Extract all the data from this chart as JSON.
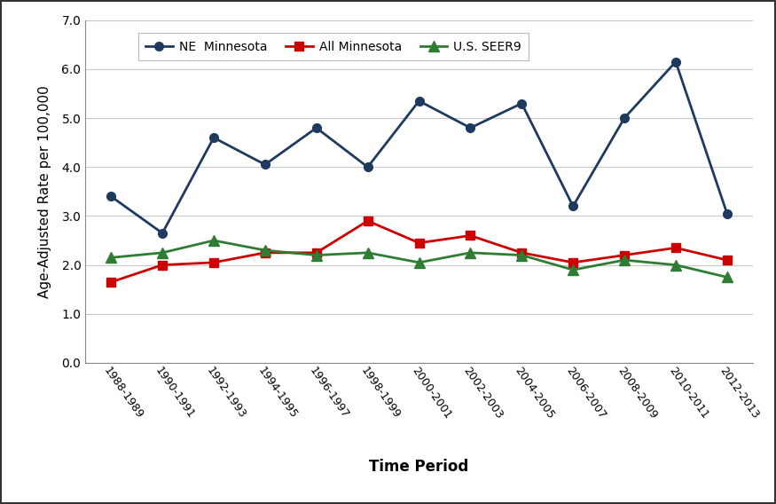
{
  "time_periods": [
    "1988-1989",
    "1990-1991",
    "1992-1993",
    "1994-1995",
    "1996-1997",
    "1998-1999",
    "2000-2001",
    "2002-2003",
    "2004-2005",
    "2006-2007",
    "2008-2009",
    "2010-2011",
    "2012-2013"
  ],
  "ne_minnesota": [
    3.4,
    2.65,
    4.6,
    4.05,
    4.8,
    4.0,
    5.35,
    4.8,
    5.3,
    3.2,
    5.0,
    6.15,
    3.05
  ],
  "all_minnesota": [
    1.65,
    2.0,
    2.05,
    2.25,
    2.25,
    2.9,
    2.45,
    2.6,
    2.25,
    2.05,
    2.2,
    2.35,
    2.1
  ],
  "us_seer9": [
    2.15,
    2.25,
    2.5,
    2.3,
    2.2,
    2.25,
    2.05,
    2.25,
    2.2,
    1.9,
    2.1,
    2.0,
    1.75
  ],
  "ne_color": "#1e3a5f",
  "all_mn_color": "#cc0000",
  "seer9_color": "#2e7d32",
  "xlabel": "Time Period",
  "ylabel": "Age-Adjusted Rate per 100,000",
  "ylim": [
    0.0,
    7.0
  ],
  "yticks": [
    0.0,
    1.0,
    2.0,
    3.0,
    4.0,
    5.0,
    6.0,
    7.0
  ],
  "legend_labels": [
    "NE  Minnesota",
    "All Minnesota",
    "U.S. SEER9"
  ],
  "background_color": "#ffffff",
  "grid_color": "#c8c8c8",
  "outer_border_color": "#333333"
}
